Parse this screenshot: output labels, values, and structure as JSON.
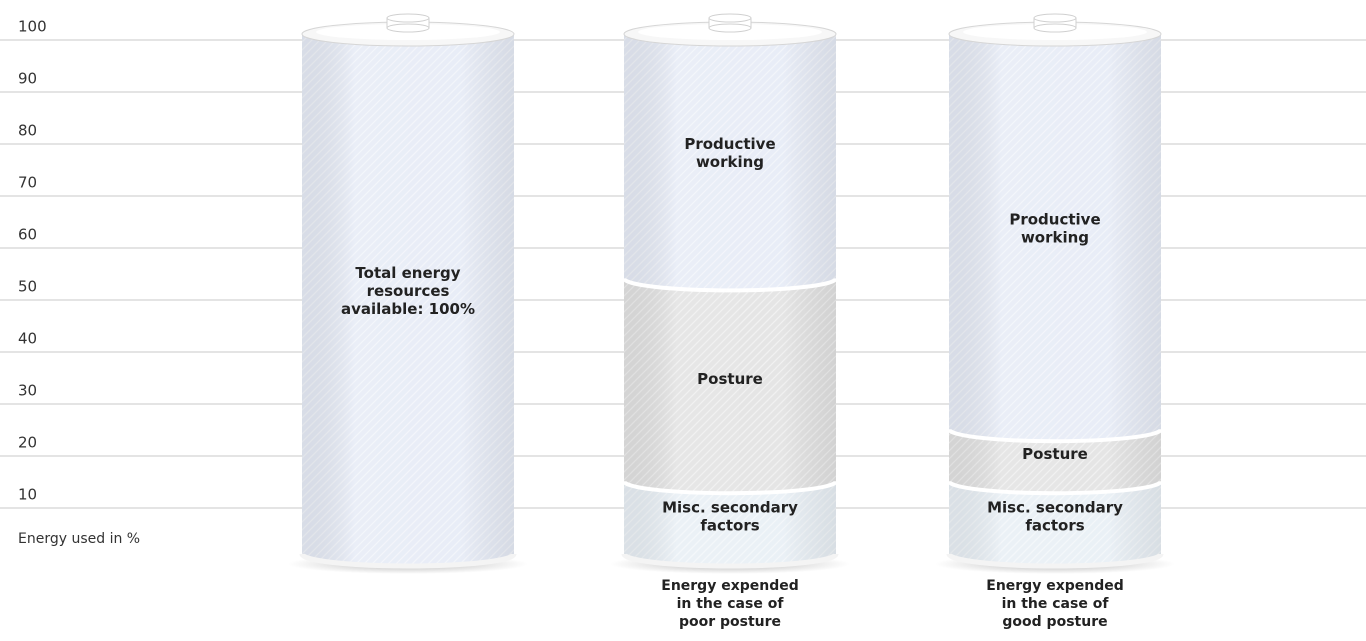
{
  "chart_data": {
    "type": "bar",
    "stacked": true,
    "ylabel": "Energy used in %",
    "ylim": [
      0,
      100
    ],
    "yticks": [
      10,
      20,
      30,
      40,
      50,
      60,
      70,
      80,
      90,
      100
    ],
    "grid": true,
    "categories": [
      "",
      "Energy expended in the case of poor posture",
      "Energy expended in the case of good posture"
    ],
    "bars": [
      {
        "segments": [
          {
            "name": "Total energy resources available: 100%",
            "value": 100,
            "color": "#e6ebf6"
          }
        ]
      },
      {
        "segments": [
          {
            "name": "Misc. secondary factors",
            "value": 14,
            "color": "#e8eff5"
          },
          {
            "name": "Posture",
            "value": 39,
            "color": "#e2e2e2"
          },
          {
            "name": "Productive working",
            "value": 47,
            "color": "#e6ebf6"
          }
        ]
      },
      {
        "segments": [
          {
            "name": "Misc. secondary factors",
            "value": 14,
            "color": "#e8eff5"
          },
          {
            "name": "Posture",
            "value": 10,
            "color": "#e2e2e2"
          },
          {
            "name": "Productive working",
            "value": 76,
            "color": "#e6ebf6"
          }
        ]
      }
    ]
  }
}
